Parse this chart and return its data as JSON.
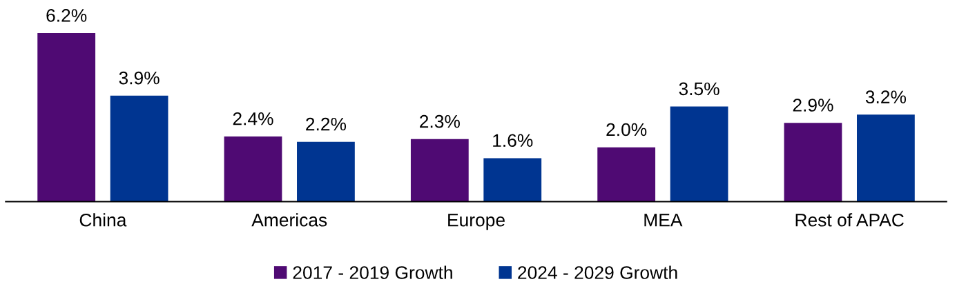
{
  "chart_data": {
    "type": "bar",
    "categories": [
      "China",
      "Americas",
      "Europe",
      "MEA",
      "Rest of APAC"
    ],
    "series": [
      {
        "name": "2017 - 2019 Growth",
        "color": "#4f0a73",
        "values": [
          6.2,
          2.4,
          2.3,
          2.0,
          2.9
        ],
        "value_labels": [
          "6.2%",
          "2.4%",
          "2.3%",
          "2.0%",
          "2.9%"
        ]
      },
      {
        "name": "2024 - 2029 Growth",
        "color": "#003591",
        "values": [
          3.9,
          2.2,
          1.6,
          3.5,
          3.2
        ],
        "value_labels": [
          "3.9%",
          "2.2%",
          "1.6%",
          "3.5%",
          "3.2%"
        ]
      }
    ],
    "legend": "bottom",
    "grid": false
  }
}
